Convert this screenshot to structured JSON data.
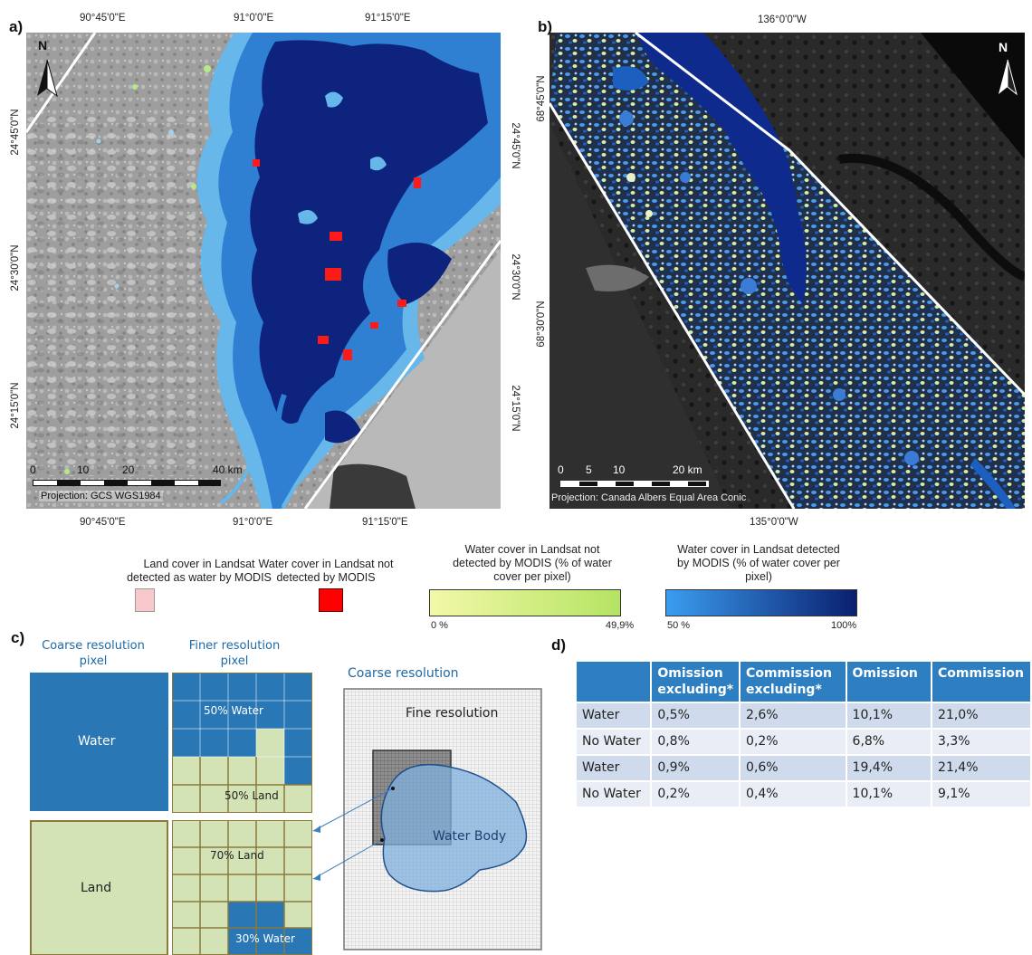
{
  "panels": {
    "a": "a)",
    "b": "b)",
    "c": "c)",
    "d": "d)"
  },
  "map_a": {
    "top_lon": [
      "90°45'0\"E",
      "91°0'0\"E",
      "91°15'0\"E"
    ],
    "bottom_lon": [
      "90°45'0\"E",
      "91°0'0\"E",
      "91°15'0\"E"
    ],
    "left_lat": [
      "24°45'0\"N",
      "24°30'0\"N",
      "24°15'0\"N"
    ],
    "right_lat": [
      "24°45'0\"N",
      "24°30'0\"N",
      "24°15'0\"N"
    ],
    "north": "N",
    "scale": [
      "0",
      "10",
      "20",
      "40 km"
    ],
    "projection": "Projection: GCS WGS1984"
  },
  "map_b": {
    "top_lon": "136°0'0\"W",
    "bottom_lon": "135°0'0\"W",
    "left_lat": [
      "68°45'0\"N",
      "68°30'0\"N"
    ],
    "north": "N",
    "scale": [
      "0",
      "5",
      "10",
      "20 km"
    ],
    "projection": "Projection: Canada Albers Equal Area Conic"
  },
  "legend": {
    "land_as_water": "Land cover in Landsat detected as water by MODIS",
    "water_not_detected": "Water cover in Landsat not detected by MODIS",
    "water_partial": "Water cover in Landsat not detected by MODIS (% of water cover per pixel)",
    "water_detected": "Water cover in Landsat detected by MODIS (% of water cover per pixel)",
    "ramp1_min": "0 %",
    "ramp1_max": "49,9%",
    "ramp2_min": "50 %",
    "ramp2_max": "100%",
    "colors": {
      "land_as_water": "#f7c9cc",
      "water_not_detected": "#ff0000",
      "ramp1": [
        "#f3f8a8",
        "#b4e463"
      ],
      "ramp2": [
        "#3b9df0",
        "#0a1f6e"
      ]
    }
  },
  "schematic": {
    "coarse_header": "Coarse resolution pixel",
    "finer_header": "Finer resolution pixel",
    "water": "Water",
    "land": "Land",
    "w50": "50% Water",
    "l50": "50% Land",
    "l70": "70% Land",
    "w30": "30% Water",
    "coarse_res": "Coarse resolution",
    "fine_res": "Fine resolution",
    "water_body": "Water Body"
  },
  "table": {
    "headers": [
      "",
      "Omission excluding*",
      "Commission excluding*",
      "Omission",
      "Commission"
    ],
    "rows": [
      [
        "Water",
        "0,5%",
        "2,6%",
        "10,1%",
        "21,0%"
      ],
      [
        "No Water",
        "0,8%",
        "0,2%",
        "6,8%",
        "3,3%"
      ],
      [
        "Water",
        "0,9%",
        "0,6%",
        "19,4%",
        "21,4%"
      ],
      [
        "No Water",
        "0,2%",
        "0,4%",
        "10,1%",
        "9,1%"
      ]
    ]
  }
}
